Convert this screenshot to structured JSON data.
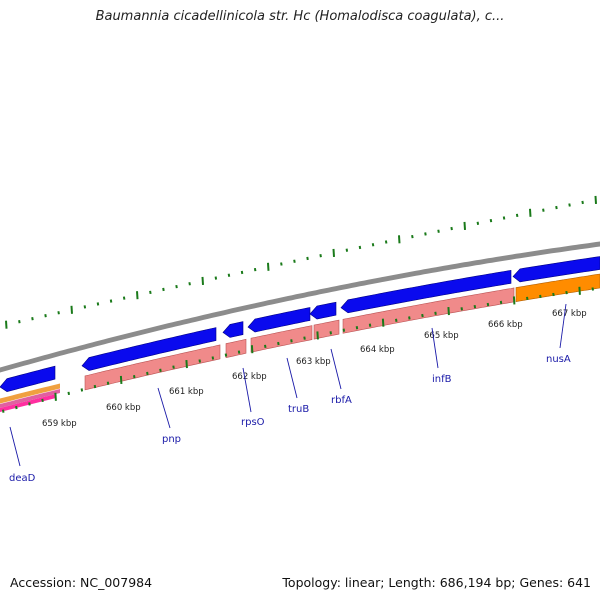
{
  "title": "Baumannia cicadellinicola str. Hc (Homalodisca coagulata), c...",
  "footer": {
    "accession": "Accession: NC_007984",
    "summary": "Topology: linear; Length: 686,194 bp; Genes: 641"
  },
  "colors": {
    "backbone": "#8c8c8c",
    "gene_forward": "#0a0aee",
    "gene_reverse": "#f08a8a",
    "rna": "#ff8c00",
    "tick": "#1a7a1a",
    "tick_label": "#222222",
    "gene_label": "#1a1aa8"
  },
  "scale": {
    "unit": "kbp",
    "tick_labels": [
      "659 kbp",
      "660 kbp",
      "661 kbp",
      "662 kbp",
      "663 kbp",
      "664 kbp",
      "665 kbp",
      "666 kbp",
      "667 kbp"
    ]
  },
  "genes": [
    {
      "name": "deaD"
    },
    {
      "name": "pnp"
    },
    {
      "name": "rpsO"
    },
    {
      "name": "truB"
    },
    {
      "name": "rbfA"
    },
    {
      "name": "infB"
    },
    {
      "name": "nusA"
    }
  ]
}
